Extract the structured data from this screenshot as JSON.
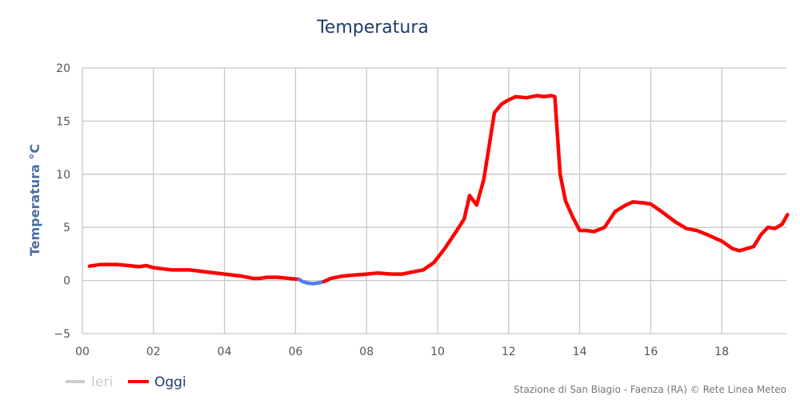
{
  "chart_data": {
    "type": "line",
    "title": "Temperatura",
    "ylabel": "Temperatura °C",
    "xlabel": "",
    "xlim": [
      0,
      19.85
    ],
    "ylim": [
      -5,
      20
    ],
    "x_ticks": [
      "00",
      "02",
      "04",
      "06",
      "08",
      "10",
      "12",
      "14",
      "16",
      "18"
    ],
    "y_ticks": [
      "−5",
      "0",
      "5",
      "10",
      "15",
      "20"
    ],
    "grid": true,
    "legend_placement": "bottom-left",
    "credit": "Stazione di San Biagio - Faenza (RA) © Rete Linea Meteo",
    "colors": {
      "oggi": "#ff0000",
      "below_zero": "#4f7fe8",
      "ieri": "#cccccc",
      "grid": "#c8c8c8"
    },
    "series": [
      {
        "name": "Ieri",
        "visible": false,
        "x": [],
        "y": []
      },
      {
        "name": "Oggi",
        "visible": true,
        "x": [
          0.2,
          0.5,
          1.0,
          1.3,
          1.6,
          1.8,
          2.0,
          2.5,
          3.0,
          3.5,
          4.0,
          4.5,
          4.8,
          5.0,
          5.2,
          5.5,
          5.8,
          6.1,
          6.2,
          6.35,
          6.5,
          6.7,
          6.8,
          7.0,
          7.3,
          7.6,
          8.0,
          8.3,
          8.7,
          9.0,
          9.3,
          9.6,
          9.9,
          10.2,
          10.5,
          10.75,
          10.9,
          11.1,
          11.3,
          11.6,
          11.8,
          12.0,
          12.2,
          12.5,
          12.8,
          13.0,
          13.2,
          13.3,
          13.45,
          13.6,
          13.8,
          14.0,
          14.2,
          14.4,
          14.7,
          15.0,
          15.3,
          15.5,
          15.8,
          16.0,
          16.3,
          16.7,
          17.0,
          17.3,
          17.6,
          18.0,
          18.3,
          18.5,
          18.7,
          18.9,
          19.1,
          19.3,
          19.5,
          19.7,
          19.85
        ],
        "y": [
          1.35,
          1.5,
          1.5,
          1.4,
          1.3,
          1.4,
          1.2,
          1.0,
          1.0,
          0.8,
          0.6,
          0.4,
          0.2,
          0.2,
          0.3,
          0.3,
          0.2,
          0.1,
          -0.1,
          -0.25,
          -0.3,
          -0.2,
          -0.1,
          0.2,
          0.4,
          0.5,
          0.6,
          0.7,
          0.6,
          0.6,
          0.8,
          1.0,
          1.7,
          3.0,
          4.5,
          5.8,
          8.0,
          7.1,
          9.5,
          15.8,
          16.6,
          17.0,
          17.3,
          17.2,
          17.4,
          17.3,
          17.4,
          17.3,
          10.0,
          7.5,
          6.0,
          4.7,
          4.7,
          4.6,
          5.0,
          6.5,
          7.1,
          7.4,
          7.3,
          7.2,
          6.5,
          5.5,
          4.9,
          4.7,
          4.3,
          3.7,
          3.0,
          2.8,
          3.0,
          3.2,
          4.3,
          5.0,
          4.9,
          5.3,
          6.2
        ]
      }
    ]
  }
}
